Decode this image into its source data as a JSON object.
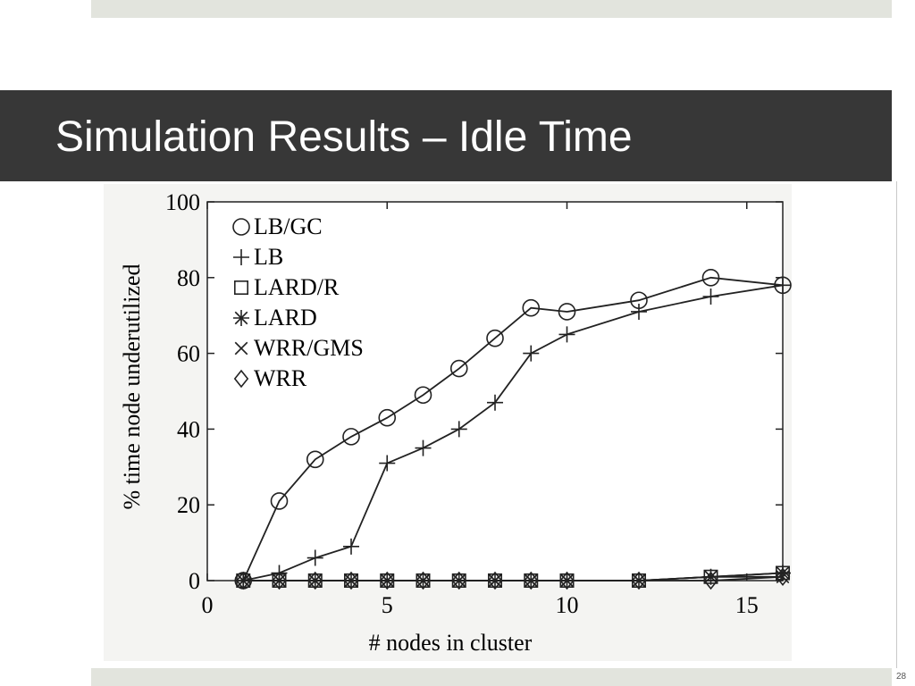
{
  "slide": {
    "title": "Simulation Results – Idle Time",
    "page_number": "28",
    "colors": {
      "title_band": "#373737",
      "accent_bar": "#e2e4dd",
      "title_text": "#ffffff"
    }
  },
  "chart_data": {
    "type": "line",
    "title": "",
    "xlabel": "# nodes in cluster",
    "ylabel": "% time node underutilized",
    "xlim": [
      0,
      16
    ],
    "ylim": [
      0,
      100
    ],
    "xticks": [
      0,
      5,
      10,
      15
    ],
    "yticks": [
      0,
      20,
      40,
      60,
      80,
      100
    ],
    "grid": false,
    "legend_position": "top-left",
    "series": [
      {
        "name": "LB/GC",
        "marker": "circle",
        "x": [
          1,
          2,
          3,
          4,
          5,
          6,
          7,
          8,
          9,
          10,
          12,
          14,
          16
        ],
        "y": [
          0,
          21,
          32,
          38,
          43,
          49,
          56,
          64,
          72,
          71,
          74,
          80,
          78
        ]
      },
      {
        "name": "LB",
        "marker": "plus",
        "x": [
          1,
          2,
          3,
          4,
          5,
          6,
          7,
          8,
          9,
          10,
          12,
          14,
          16
        ],
        "y": [
          0,
          2,
          6,
          9,
          31,
          35,
          40,
          47,
          60,
          65,
          71,
          75,
          78
        ]
      },
      {
        "name": "LARD/R",
        "marker": "square",
        "x": [
          1,
          2,
          3,
          4,
          5,
          6,
          7,
          8,
          9,
          10,
          12,
          14,
          16
        ],
        "y": [
          0,
          0,
          0,
          0,
          0,
          0,
          0,
          0,
          0,
          0,
          0,
          1,
          2
        ]
      },
      {
        "name": "LARD",
        "marker": "star",
        "x": [
          1,
          2,
          3,
          4,
          5,
          6,
          7,
          8,
          9,
          10,
          12,
          14,
          16
        ],
        "y": [
          0,
          0,
          0,
          0,
          0,
          0,
          0,
          0,
          0,
          0,
          0,
          1,
          2
        ]
      },
      {
        "name": "WRR/GMS",
        "marker": "cross",
        "x": [
          1,
          2,
          3,
          4,
          5,
          6,
          7,
          8,
          9,
          10,
          12,
          14,
          16
        ],
        "y": [
          0,
          0,
          0,
          0,
          0,
          0,
          0,
          0,
          0,
          0,
          0,
          1,
          1
        ]
      },
      {
        "name": "WRR",
        "marker": "diamond",
        "x": [
          1,
          2,
          3,
          4,
          5,
          6,
          7,
          8,
          9,
          10,
          12,
          14,
          16
        ],
        "y": [
          0,
          0,
          0,
          0,
          0,
          0,
          0,
          0,
          0,
          0,
          0,
          0,
          1
        ]
      }
    ]
  }
}
